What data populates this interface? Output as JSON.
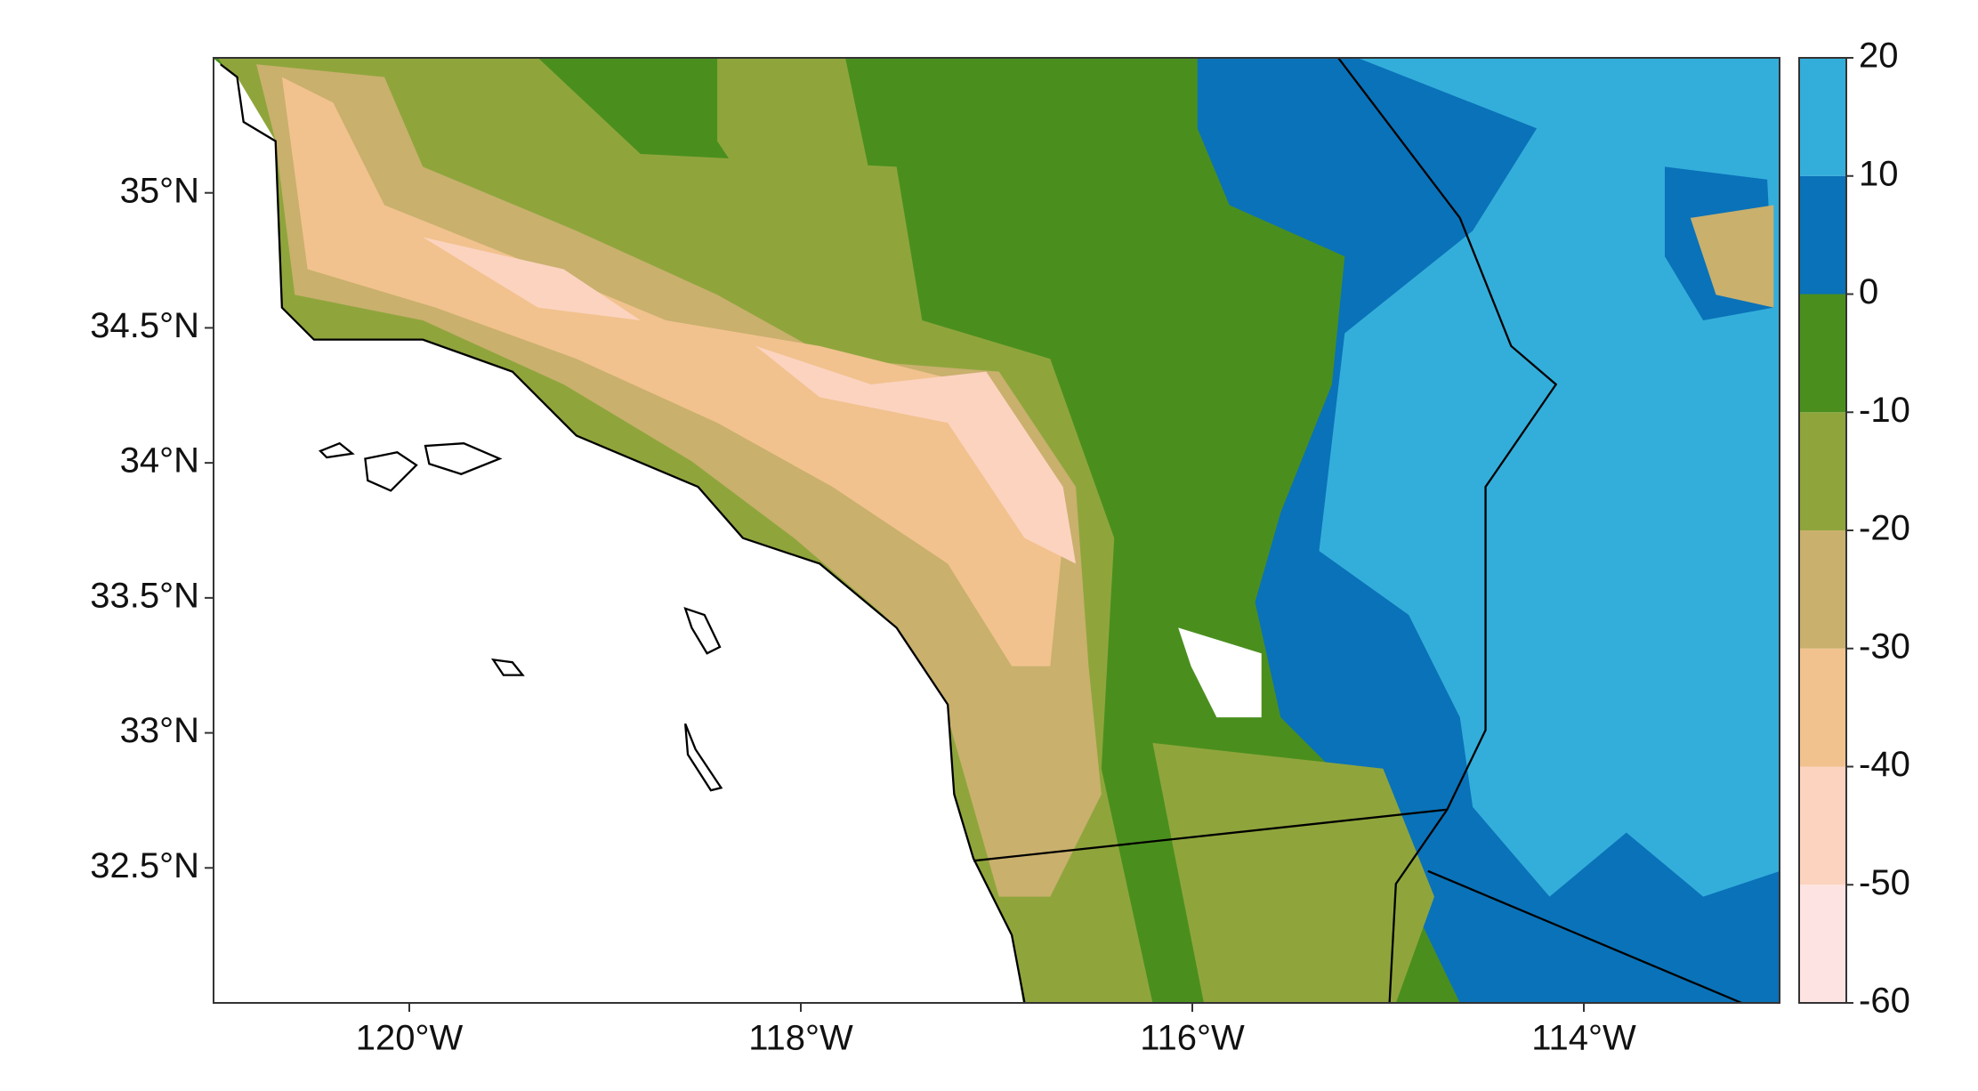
{
  "map": {
    "xlim": [
      -121,
      -113
    ],
    "ylim": [
      32,
      35.5
    ],
    "xticks": [
      {
        "value": -120,
        "label": "120°W"
      },
      {
        "value": -118,
        "label": "118°W"
      },
      {
        "value": -116,
        "label": "116°W"
      },
      {
        "value": -114,
        "label": "114°W"
      }
    ],
    "yticks": [
      {
        "value": 35,
        "label": "35°N"
      },
      {
        "value": 34.5,
        "label": "34.5°N"
      },
      {
        "value": 34,
        "label": "34°N"
      },
      {
        "value": 33.5,
        "label": "33.5°N"
      },
      {
        "value": 33,
        "label": "33°N"
      },
      {
        "value": 32.5,
        "label": "32.5°N"
      }
    ],
    "colorbar": {
      "levels": [
        -60,
        -50,
        -40,
        -30,
        -20,
        -10,
        0,
        10,
        20
      ],
      "colors": [
        "#fde4e2",
        "#fcd3bf",
        "#f1c28e",
        "#c9b06d",
        "#8fa53c",
        "#4a8f1e",
        "#0a72b8",
        "#33aedb"
      ]
    }
  }
}
